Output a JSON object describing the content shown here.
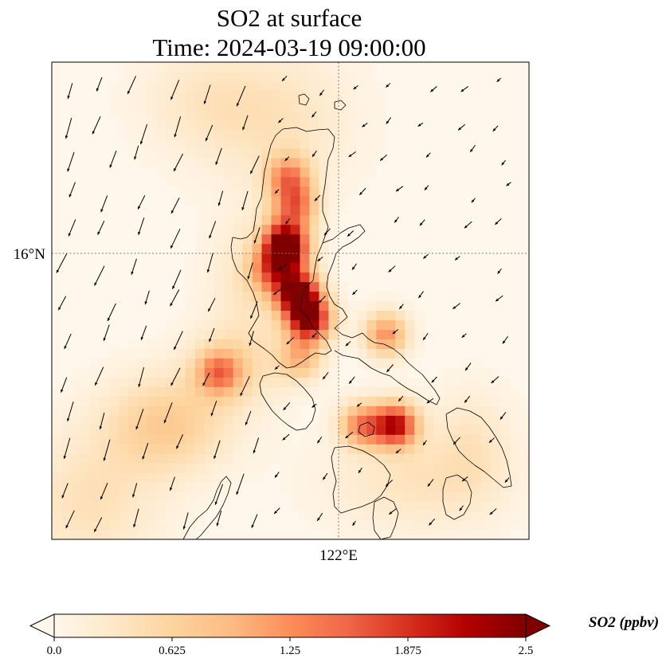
{
  "chart_data": {
    "type": "heatmap",
    "title_line1": "SO2 at surface",
    "title_line2": "Time: 2024-03-19 09:00:00",
    "x_tick_label": "122°E",
    "y_tick_label": "16°N",
    "gridlines": "dotted",
    "map_features": [
      "coastlines",
      "wind-vectors"
    ],
    "colormap": "OrRd",
    "colorbar": {
      "label": "SO2 (ppbv)",
      "min": 0.0,
      "max": 2.5,
      "extend": "both",
      "ticks": [
        0.0,
        0.625,
        1.25,
        1.875,
        2.5
      ],
      "tick_labels": [
        "0.0",
        "0.625",
        "1.25",
        "1.875",
        "2.5"
      ],
      "colors": [
        "#fff7ec",
        "#fee8c8",
        "#fdd49e",
        "#fdbb84",
        "#fc8d59",
        "#ef6548",
        "#d7301f",
        "#b30000",
        "#7f0000"
      ]
    },
    "hotspots": [
      {
        "lon": 121.58,
        "lat": 15.58,
        "value": 2.5
      },
      {
        "lon": 121.7,
        "lat": 15.3,
        "value": 2.3
      },
      {
        "lon": 121.45,
        "lat": 16.0,
        "value": 1.8
      },
      {
        "lon": 121.45,
        "lat": 16.15,
        "value": 1.5
      },
      {
        "lon": 121.55,
        "lat": 16.5,
        "value": 1.3
      },
      {
        "lon": 121.48,
        "lat": 16.8,
        "value": 1.2
      },
      {
        "lon": 122.5,
        "lat": 15.15,
        "value": 1.2
      },
      {
        "lon": 120.75,
        "lat": 14.75,
        "value": 1.1
      },
      {
        "lon": 122.6,
        "lat": 14.2,
        "value": 2.1
      },
      {
        "lon": 122.25,
        "lat": 14.2,
        "value": 1.3
      },
      {
        "lon": 121.6,
        "lat": 14.9,
        "value": 0.9
      },
      {
        "lon": 121.3,
        "lat": 15.8,
        "value": 1.0
      }
    ]
  }
}
